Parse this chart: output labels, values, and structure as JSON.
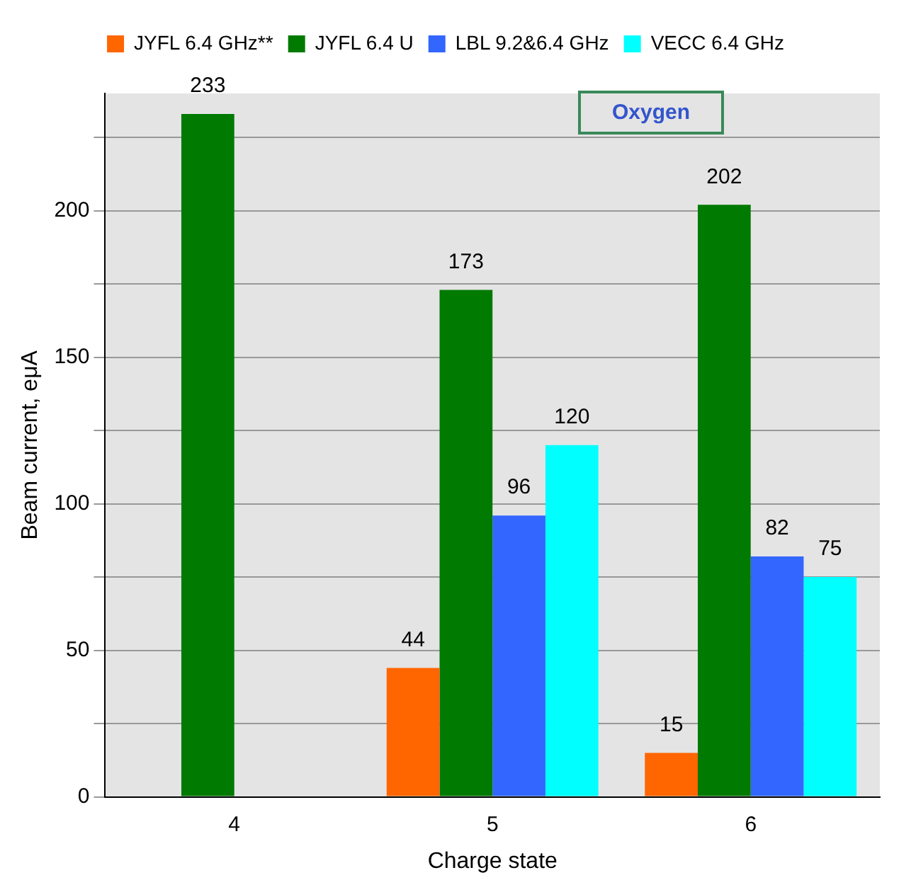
{
  "chart_data": {
    "type": "bar",
    "xlabel": "Charge state",
    "ylabel": "Beam current, eμA",
    "categories": [
      "4",
      "5",
      "6"
    ],
    "series": [
      {
        "name": "JYFL 6.4 GHz**",
        "color": "#ff6600",
        "values": [
          null,
          44,
          15
        ]
      },
      {
        "name": "JYFL 6.4 U",
        "color": "#007a00",
        "values": [
          233,
          173,
          202
        ]
      },
      {
        "name": "LBL 9.2&6.4 GHz",
        "color": "#3366ff",
        "values": [
          null,
          96,
          82
        ]
      },
      {
        "name": "VECC 6.4 GHz",
        "color": "#00ffff",
        "values": [
          null,
          120,
          75
        ]
      }
    ],
    "ylim": [
      0,
      240
    ],
    "yticks": [
      0,
      {
        "value": 25,
        "label": null
      },
      50,
      {
        "value": 75,
        "label": null
      },
      100,
      {
        "value": 125,
        "label": null
      },
      150,
      {
        "value": 175,
        "label": null
      },
      200,
      {
        "value": 225,
        "label": null
      }
    ],
    "grid": "y",
    "legend": "top",
    "data_labels": true,
    "annotations": [
      "Oxygen"
    ]
  }
}
